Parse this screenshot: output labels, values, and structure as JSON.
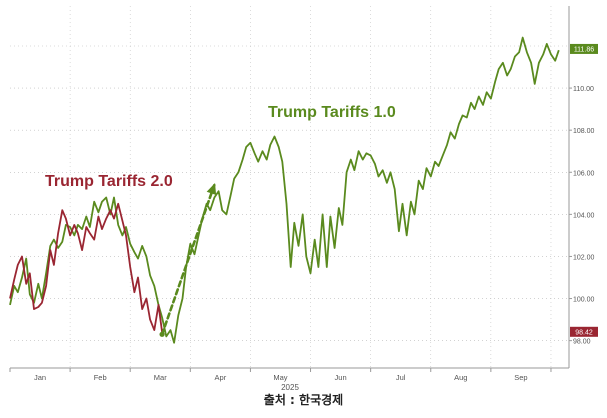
{
  "chart_data": {
    "type": "line",
    "title": "",
    "xlabel": "",
    "ylabel": "",
    "xlim": [
      0,
      9.3
    ],
    "ylim": [
      96.7,
      113.9
    ],
    "grid": true,
    "y_ticks": [
      98,
      100,
      102,
      104,
      106,
      108,
      110
    ],
    "y_tick_labels": [
      "98.00",
      "100.00",
      "102.00",
      "104.00",
      "106.00",
      "108.00",
      "110.00"
    ],
    "x_ticks": [
      0.5,
      1.5,
      2.5,
      3.5,
      4.5,
      5.5,
      6.5,
      7.5,
      8.5
    ],
    "x_tick_labels": [
      "Jan",
      "Feb",
      "Mar",
      "Apr",
      "May",
      "Jun",
      "Jul",
      "Aug",
      "Sep"
    ],
    "year_label": "2025",
    "series": [
      {
        "name": "Trump Tariffs 1.0",
        "color": "#5a8a1e",
        "x": [
          0,
          0.07,
          0.13,
          0.2,
          0.27,
          0.33,
          0.4,
          0.47,
          0.53,
          0.6,
          0.67,
          0.73,
          0.8,
          0.87,
          0.93,
          1.0,
          1.07,
          1.13,
          1.2,
          1.27,
          1.33,
          1.4,
          1.47,
          1.53,
          1.6,
          1.67,
          1.73,
          1.8,
          1.87,
          1.93,
          2.0,
          2.07,
          2.13,
          2.2,
          2.27,
          2.33,
          2.4,
          2.47,
          2.53,
          2.6,
          2.67,
          2.73,
          2.8,
          2.87,
          2.93,
          3.0,
          3.07,
          3.13,
          3.2,
          3.27,
          3.33,
          3.4,
          3.47,
          3.53,
          3.6,
          3.67,
          3.73,
          3.8,
          3.87,
          3.93,
          4.0,
          4.07,
          4.13,
          4.2,
          4.27,
          4.33,
          4.4,
          4.47,
          4.53,
          4.6,
          4.67,
          4.73,
          4.8,
          4.87,
          4.93,
          5.0,
          5.07,
          5.13,
          5.2,
          5.27,
          5.33,
          5.4,
          5.47,
          5.53,
          5.6,
          5.67,
          5.73,
          5.8,
          5.87,
          5.93,
          6.0,
          6.07,
          6.13,
          6.2,
          6.27,
          6.33,
          6.4,
          6.47,
          6.53,
          6.6,
          6.67,
          6.73,
          6.8,
          6.87,
          6.93,
          7.0,
          7.07,
          7.13,
          7.2,
          7.27,
          7.33,
          7.4,
          7.47,
          7.53,
          7.6,
          7.67,
          7.73,
          7.8,
          7.87,
          7.93,
          8.0,
          8.07,
          8.13,
          8.2,
          8.27,
          8.33,
          8.4,
          8.47,
          8.53,
          8.6,
          8.67,
          8.73,
          8.8,
          8.87,
          8.93,
          9.0,
          9.07,
          9.13
        ],
        "y": [
          99.7,
          100.6,
          100.3,
          101.0,
          101.9,
          100.2,
          99.8,
          100.7,
          100.0,
          101.2,
          102.5,
          102.8,
          102.4,
          102.7,
          103.5,
          103.4,
          103.0,
          103.5,
          103.3,
          103.9,
          103.4,
          104.6,
          104.1,
          104.6,
          104.8,
          104.0,
          104.8,
          103.5,
          103.0,
          103.4,
          102.6,
          102.2,
          101.9,
          102.5,
          102.0,
          101.1,
          100.6,
          99.7,
          99.1,
          98.2,
          98.5,
          97.9,
          99.2,
          100.0,
          101.5,
          102.6,
          102.1,
          102.9,
          103.8,
          104.5,
          104.2,
          104.8,
          105.1,
          104.2,
          104.0,
          104.9,
          105.7,
          106.0,
          106.6,
          107.2,
          107.4,
          106.9,
          106.5,
          107.0,
          106.6,
          107.3,
          107.7,
          107.2,
          106.5,
          104.5,
          101.5,
          103.6,
          102.5,
          104.0,
          102.0,
          101.2,
          102.8,
          101.5,
          104.0,
          101.5,
          103.9,
          102.4,
          104.3,
          103.5,
          106.0,
          106.6,
          106.1,
          107.0,
          106.6,
          106.9,
          106.8,
          106.4,
          105.8,
          106.1,
          105.5,
          106.0,
          105.2,
          103.2,
          104.5,
          103.0,
          104.6,
          104.0,
          105.6,
          105.2,
          106.2,
          105.8,
          106.5,
          106.3,
          106.8,
          107.3,
          107.9,
          107.6,
          108.3,
          108.7,
          108.6,
          109.3,
          109.0,
          109.6,
          109.2,
          109.8,
          109.5,
          110.3,
          110.9,
          111.2,
          110.6,
          110.9,
          111.5,
          111.7,
          112.4,
          111.7,
          111.2,
          110.2,
          111.2,
          111.6,
          112.1,
          111.6,
          111.3,
          111.8
        ]
      },
      {
        "name": "Trump Tariffs 2.0",
        "color": "#9a2632",
        "x": [
          0,
          0.07,
          0.13,
          0.2,
          0.27,
          0.33,
          0.4,
          0.47,
          0.53,
          0.6,
          0.67,
          0.73,
          0.8,
          0.87,
          0.93,
          1.0,
          1.07,
          1.13,
          1.2,
          1.27,
          1.33,
          1.4,
          1.47,
          1.53,
          1.6,
          1.67,
          1.73,
          1.8,
          1.87,
          1.93,
          2.0,
          2.07,
          2.13,
          2.2,
          2.27,
          2.33,
          2.4,
          2.47,
          2.53
        ],
        "y": [
          100.0,
          100.9,
          101.6,
          102.0,
          100.7,
          101.2,
          99.5,
          99.6,
          99.8,
          100.6,
          102.3,
          101.6,
          103.1,
          104.2,
          103.8,
          103.0,
          103.5,
          103.1,
          102.3,
          103.4,
          103.1,
          102.8,
          103.9,
          103.3,
          103.8,
          104.2,
          103.8,
          104.5,
          103.7,
          103.0,
          101.5,
          100.3,
          101.0,
          99.5,
          100.0,
          99.0,
          98.5,
          99.7,
          98.4
        ]
      }
    ],
    "last_value_labels": [
      {
        "series": "Trump Tariffs 1.0",
        "value": 111.86,
        "text": "111.86"
      },
      {
        "series": "Trump Tariffs 2.0",
        "value": 98.42,
        "text": "98.42"
      }
    ],
    "annotations": [
      {
        "text": "Trump Tariffs 2.0",
        "color": "#9a2632"
      },
      {
        "text": "Trump Tariffs 1.0",
        "color": "#5a8a1e"
      }
    ],
    "arrow": {
      "from": [
        2.53,
        98.3
      ],
      "to": [
        3.4,
        105.4
      ],
      "color": "#5a8a1e",
      "style": "dashed"
    }
  },
  "source_text": "출처 : 한국경제"
}
